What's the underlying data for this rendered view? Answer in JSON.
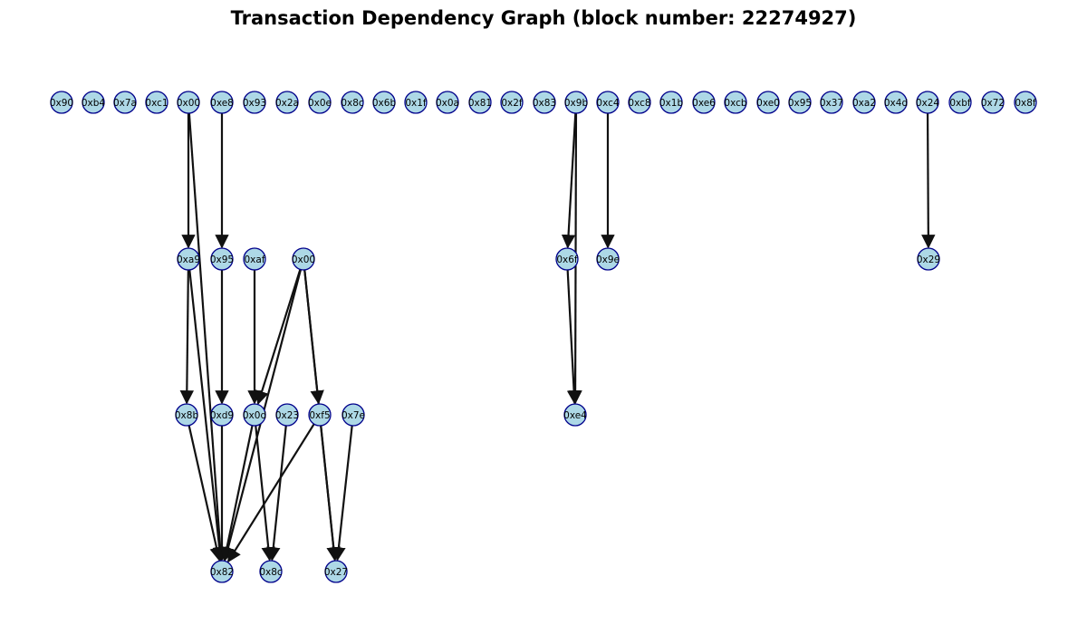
{
  "title": "Transaction Dependency Graph (block number: 22274927)",
  "colors": {
    "node_fill": "#add8e6",
    "node_stroke": "#00008b",
    "edge": "#111111"
  },
  "layers": [
    [
      "0x90",
      "0xb4",
      "0x7a",
      "0xc1",
      "0x00",
      "0xe8",
      "0x93",
      "0x2a",
      "0x0e",
      "0x8c",
      "0x6b",
      "0x1f",
      "0x0a",
      "0x81",
      "0x2f",
      "0x83",
      "0x9b",
      "0xc4",
      "0xc8",
      "0x1b",
      "0xe6",
      "0xcb",
      "0xe0",
      "0x95",
      "0x37",
      "0xa2",
      "0x4d",
      "0x24",
      "0xbf",
      "0x72",
      "0x8f"
    ],
    [
      "0xa9",
      "0x95",
      "0xaf",
      "0x00",
      "0x6f",
      "0x9e",
      "0x29"
    ],
    [
      "0x8b",
      "0xd9",
      "0x0d",
      "0x23",
      "0xf5",
      "0x7e",
      "0xe4"
    ],
    [
      "0x82",
      "0x8c",
      "0x27"
    ]
  ],
  "edges": [
    [
      "0.4",
      "1.0"
    ],
    [
      "0.4",
      "3.0"
    ],
    [
      "0.5",
      "1.1"
    ],
    [
      "0.16",
      "1.4"
    ],
    [
      "0.16",
      "2.6"
    ],
    [
      "0.17",
      "1.5"
    ],
    [
      "0.27",
      "1.6"
    ],
    [
      "1.0",
      "2.0"
    ],
    [
      "1.0",
      "3.0"
    ],
    [
      "1.1",
      "2.1"
    ],
    [
      "1.2",
      "2.2"
    ],
    [
      "1.3",
      "2.2"
    ],
    [
      "1.3",
      "2.4"
    ],
    [
      "1.3",
      "3.0"
    ],
    [
      "1.3",
      "3.2"
    ],
    [
      "1.4",
      "2.6"
    ],
    [
      "2.0",
      "3.0"
    ],
    [
      "2.1",
      "3.0"
    ],
    [
      "2.2",
      "3.0"
    ],
    [
      "2.2",
      "3.1"
    ],
    [
      "2.3",
      "3.1"
    ],
    [
      "2.4",
      "3.0"
    ],
    [
      "2.4",
      "3.2"
    ],
    [
      "2.5",
      "3.2"
    ]
  ]
}
